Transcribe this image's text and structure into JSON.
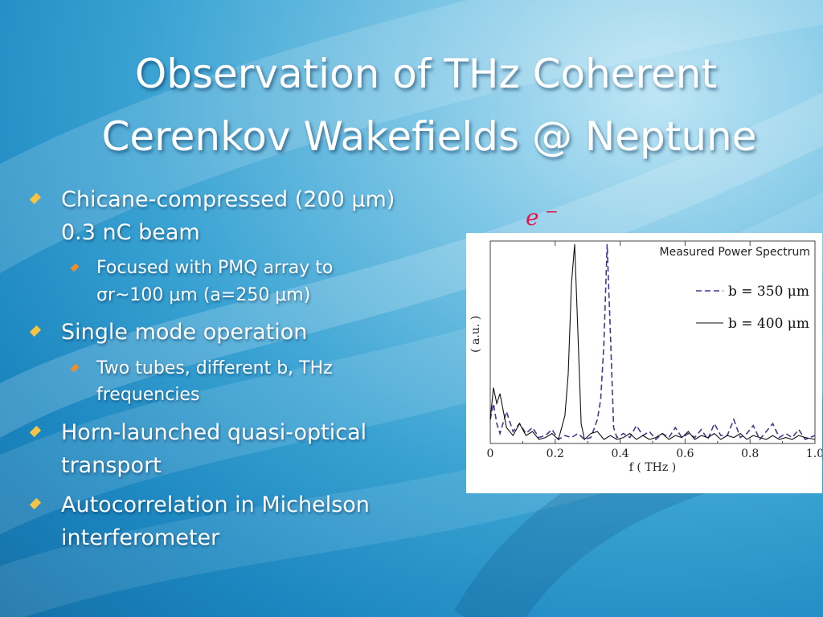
{
  "title": {
    "line1": "Observation of  THz Coherent",
    "line2": "Cerenkov Wakefields @ Neptune"
  },
  "bullets": [
    {
      "level": 1,
      "lines": [
        "Chicane-compressed (200 μm)",
        "0.3 nC beam"
      ]
    },
    {
      "level": 2,
      "lines": [
        "Focused with PMQ array to",
        "σr~100 μm (a=250 μm)"
      ]
    },
    {
      "level": 1,
      "lines": [
        "Single mode operation"
      ]
    },
    {
      "level": 2,
      "lines": [
        "Two tubes, different b, THz",
        "frequencies"
      ]
    },
    {
      "level": 1,
      "lines": [
        "Horn-launched quasi-optical",
        "transport"
      ]
    },
    {
      "level": 1,
      "lines": [
        "Autocorrelation in Michelson",
        "interferometer"
      ]
    }
  ],
  "beam_label": {
    "symbol": "e",
    "superscript": "−"
  },
  "colors": {
    "bullet_level1": "#f6c445",
    "bullet_level2": "#f28b2d",
    "beam_label": "#e0174a"
  },
  "chart_data": {
    "type": "line",
    "title": "Measured Power Spectrum",
    "xlabel": "f ( THz )",
    "ylabel": "( a.u. )",
    "xlim": [
      0,
      1.0
    ],
    "xticks": [
      "0",
      "0.2",
      "0.4",
      "0.6",
      "0.8",
      "1.0"
    ],
    "yticks": [],
    "legend_position": "top-right",
    "grid": false,
    "series": [
      {
        "name": "b = 350 μm",
        "style": "dashed",
        "color": "#3f3c8f",
        "x": [
          0,
          0.01,
          0.02,
          0.03,
          0.05,
          0.07,
          0.09,
          0.11,
          0.13,
          0.15,
          0.17,
          0.19,
          0.21,
          0.23,
          0.25,
          0.27,
          0.29,
          0.31,
          0.33,
          0.34,
          0.35,
          0.36,
          0.37,
          0.38,
          0.39,
          0.41,
          0.43,
          0.45,
          0.47,
          0.49,
          0.51,
          0.53,
          0.55,
          0.57,
          0.59,
          0.61,
          0.63,
          0.65,
          0.67,
          0.69,
          0.71,
          0.73,
          0.75,
          0.77,
          0.79,
          0.81,
          0.83,
          0.85,
          0.87,
          0.89,
          0.91,
          0.93,
          0.95,
          0.97,
          1.0
        ],
        "y": [
          0.12,
          0.2,
          0.1,
          0.05,
          0.16,
          0.06,
          0.1,
          0.05,
          0.08,
          0.03,
          0.04,
          0.07,
          0.02,
          0.04,
          0.03,
          0.05,
          0.02,
          0.03,
          0.12,
          0.22,
          0.5,
          1.0,
          0.55,
          0.08,
          0.03,
          0.05,
          0.03,
          0.09,
          0.04,
          0.06,
          0.02,
          0.05,
          0.03,
          0.08,
          0.03,
          0.05,
          0.03,
          0.07,
          0.02,
          0.1,
          0.04,
          0.04,
          0.12,
          0.03,
          0.05,
          0.09,
          0.02,
          0.06,
          0.1,
          0.03,
          0.05,
          0.03,
          0.07,
          0.02,
          0.04
        ]
      },
      {
        "name": "b = 400 μm",
        "style": "solid",
        "color": "#111111",
        "x": [
          0,
          0.01,
          0.02,
          0.03,
          0.05,
          0.07,
          0.09,
          0.11,
          0.13,
          0.15,
          0.17,
          0.19,
          0.21,
          0.22,
          0.23,
          0.24,
          0.25,
          0.26,
          0.27,
          0.28,
          0.29,
          0.31,
          0.33,
          0.35,
          0.37,
          0.39,
          0.41,
          0.43,
          0.45,
          0.47,
          0.49,
          0.51,
          0.53,
          0.55,
          0.57,
          0.59,
          0.61,
          0.63,
          0.65,
          0.67,
          0.69,
          0.71,
          0.73,
          0.75,
          0.77,
          0.79,
          0.81,
          0.83,
          0.85,
          0.87,
          0.89,
          0.91,
          0.93,
          0.95,
          0.97,
          1.0
        ],
        "y": [
          0.12,
          0.28,
          0.2,
          0.25,
          0.08,
          0.04,
          0.1,
          0.04,
          0.06,
          0.02,
          0.03,
          0.05,
          0.02,
          0.08,
          0.14,
          0.35,
          0.8,
          1.0,
          0.55,
          0.1,
          0.02,
          0.05,
          0.06,
          0.02,
          0.04,
          0.02,
          0.03,
          0.05,
          0.02,
          0.04,
          0.02,
          0.03,
          0.05,
          0.02,
          0.04,
          0.03,
          0.06,
          0.02,
          0.04,
          0.03,
          0.05,
          0.02,
          0.04,
          0.03,
          0.05,
          0.02,
          0.04,
          0.03,
          0.02,
          0.04,
          0.02,
          0.03,
          0.02,
          0.04,
          0.03,
          0.02
        ]
      }
    ]
  }
}
